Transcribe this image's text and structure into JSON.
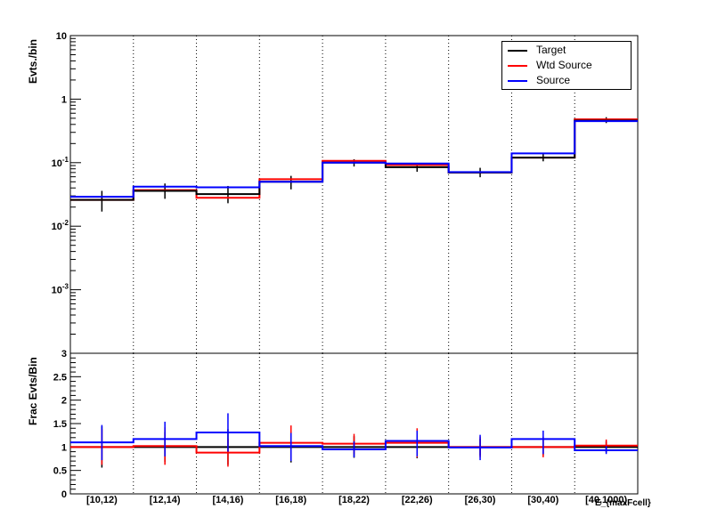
{
  "chart_data": [
    {
      "type": "line",
      "subtype": "step-histogram-with-error-bars",
      "ylabel": "Evts./bin",
      "yscale": "log",
      "ylim": [
        0.0001,
        10
      ],
      "ytick_labels": [
        "10",
        "1",
        "10^-1",
        "10^-2",
        "10^-3"
      ],
      "categories": [
        "[10,12)",
        "[12,14)",
        "[14,16)",
        "[16,18)",
        "[18,22)",
        "[22,26)",
        "[26,30)",
        "[30,40)",
        "[40,1000)"
      ],
      "grid": "vertical dotted",
      "legend_position": "top-right",
      "series": [
        {
          "name": "Target",
          "color": "#000000",
          "values": [
            0.026,
            0.036,
            0.032,
            0.05,
            0.1,
            0.085,
            0.07,
            0.12,
            0.46
          ],
          "err_low": [
            0.017,
            0.027,
            0.023,
            0.038,
            0.087,
            0.072,
            0.059,
            0.105,
            0.42
          ],
          "err_high": [
            0.036,
            0.047,
            0.043,
            0.062,
            0.113,
            0.099,
            0.083,
            0.137,
            0.52
          ]
        },
        {
          "name": "Wtd Source",
          "color": "#ff0000",
          "values": [
            0.026,
            0.037,
            0.028,
            0.055,
            0.107,
            0.092,
            0.07,
            0.12,
            0.48
          ]
        },
        {
          "name": "Source",
          "color": "#0000ff",
          "values": [
            0.029,
            0.042,
            0.041,
            0.05,
            0.1,
            0.097,
            0.071,
            0.14,
            0.45
          ]
        }
      ]
    },
    {
      "type": "line",
      "subtype": "step-histogram-with-error-bars",
      "ylabel": "Frac Evts/Bin",
      "xlabel": "E_{maxFcell}",
      "ylim": [
        0,
        3
      ],
      "ytick_labels": [
        "0",
        "0.5",
        "1",
        "1.5",
        "2",
        "2.5",
        "3"
      ],
      "categories": [
        "[10,12)",
        "[12,14)",
        "[14,16)",
        "[16,18)",
        "[18,22)",
        "[22,26)",
        "[26,30)",
        "[30,40)",
        "[40,1000)"
      ],
      "grid": "vertical dotted",
      "series": [
        {
          "name": "Target",
          "color": "#000000",
          "values": [
            1,
            1,
            1,
            1,
            1,
            1,
            1,
            1,
            1
          ],
          "err_low": [
            0.56,
            0.68,
            0.62,
            0.67,
            0.77,
            0.76,
            0.82,
            0.82,
            0.88
          ],
          "err_high": [
            1.44,
            1.32,
            1.38,
            1.33,
            1.23,
            1.24,
            1.18,
            1.18,
            1.12
          ]
        },
        {
          "name": "Wtd Source",
          "color": "#ff0000",
          "values": [
            1.0,
            1.02,
            0.88,
            1.09,
            1.07,
            1.09,
            1.0,
            1.0,
            1.03
          ],
          "err_low": [
            0.62,
            0.62,
            0.58,
            0.72,
            0.85,
            0.78,
            0.78,
            0.78,
            0.9
          ],
          "err_high": [
            1.38,
            1.42,
            1.18,
            1.46,
            1.28,
            1.4,
            1.22,
            1.22,
            1.16
          ]
        },
        {
          "name": "Source",
          "color": "#0000ff",
          "values": [
            1.1,
            1.17,
            1.31,
            1.02,
            0.95,
            1.13,
            0.99,
            1.17,
            0.93
          ],
          "err_low": [
            0.72,
            0.8,
            0.9,
            0.7,
            0.78,
            0.8,
            0.72,
            0.85,
            0.85
          ],
          "err_high": [
            1.47,
            1.54,
            1.72,
            1.3,
            1.12,
            1.35,
            1.26,
            1.35,
            1.02
          ]
        }
      ]
    }
  ]
}
